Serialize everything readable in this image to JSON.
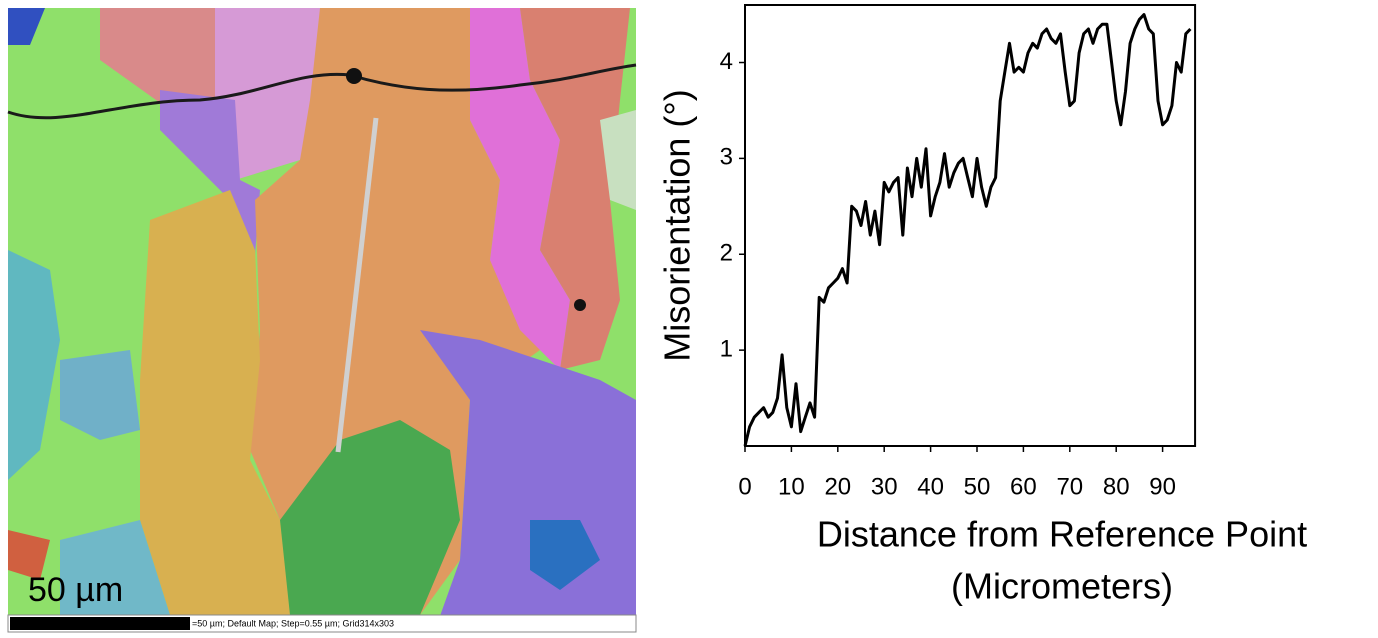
{
  "map": {
    "scale_label": "50 µm",
    "caption": "=50 µm; Default Map; Step=0.55 µm; Grid314x303"
  },
  "chart_data": {
    "type": "line",
    "ylabel": "Misorientation (°)",
    "xlabel": [
      "Distance from Reference Point",
      "(Micrometers)"
    ],
    "x": [
      0,
      1,
      2,
      3,
      4,
      5,
      6,
      7,
      8,
      9,
      10,
      11,
      12,
      13,
      14,
      15,
      16,
      17,
      18,
      19,
      20,
      21,
      22,
      23,
      24,
      25,
      26,
      27,
      28,
      29,
      30,
      31,
      32,
      33,
      34,
      35,
      36,
      37,
      38,
      39,
      40,
      41,
      42,
      43,
      44,
      45,
      46,
      47,
      48,
      49,
      50,
      51,
      52,
      53,
      54,
      55,
      56,
      57,
      58,
      59,
      60,
      61,
      62,
      63,
      64,
      65,
      66,
      67,
      68,
      69,
      70,
      71,
      72,
      73,
      74,
      75,
      76,
      77,
      78,
      79,
      80,
      81,
      82,
      83,
      84,
      85,
      86,
      87,
      88,
      89,
      90,
      91,
      92,
      93,
      94,
      95,
      96
    ],
    "series": [
      {
        "color": "#000000",
        "values": [
          0,
          0.2,
          0.3,
          0.35,
          0.4,
          0.3,
          0.35,
          0.5,
          0.95,
          0.4,
          0.2,
          0.65,
          0.15,
          0.3,
          0.45,
          0.3,
          1.55,
          1.5,
          1.65,
          1.7,
          1.75,
          1.85,
          1.7,
          2.5,
          2.45,
          2.3,
          2.55,
          2.2,
          2.45,
          2.1,
          2.75,
          2.65,
          2.75,
          2.8,
          2.2,
          2.9,
          2.6,
          3.0,
          2.7,
          3.1,
          2.4,
          2.6,
          2.75,
          3.05,
          2.7,
          2.85,
          2.95,
          3.0,
          2.8,
          2.6,
          3.0,
          2.7,
          2.5,
          2.7,
          2.8,
          3.6,
          3.9,
          4.2,
          3.9,
          3.95,
          3.9,
          4.1,
          4.2,
          4.15,
          4.3,
          4.35,
          4.25,
          4.2,
          4.3,
          3.9,
          3.55,
          3.6,
          4.1,
          4.3,
          4.35,
          4.2,
          4.35,
          4.4,
          4.4,
          4.0,
          3.6,
          3.35,
          3.7,
          4.2,
          4.35,
          4.45,
          4.5,
          4.35,
          4.3,
          3.6,
          3.35,
          3.4,
          3.55,
          4.0,
          3.9,
          4.3,
          4.35
        ]
      }
    ],
    "xlim": [
      0,
      97
    ],
    "ylim": [
      0,
      4.6
    ],
    "xticks": [
      0,
      10,
      20,
      30,
      40,
      50,
      60,
      70,
      80,
      90
    ],
    "yticks": [
      1,
      2,
      3,
      4
    ]
  }
}
